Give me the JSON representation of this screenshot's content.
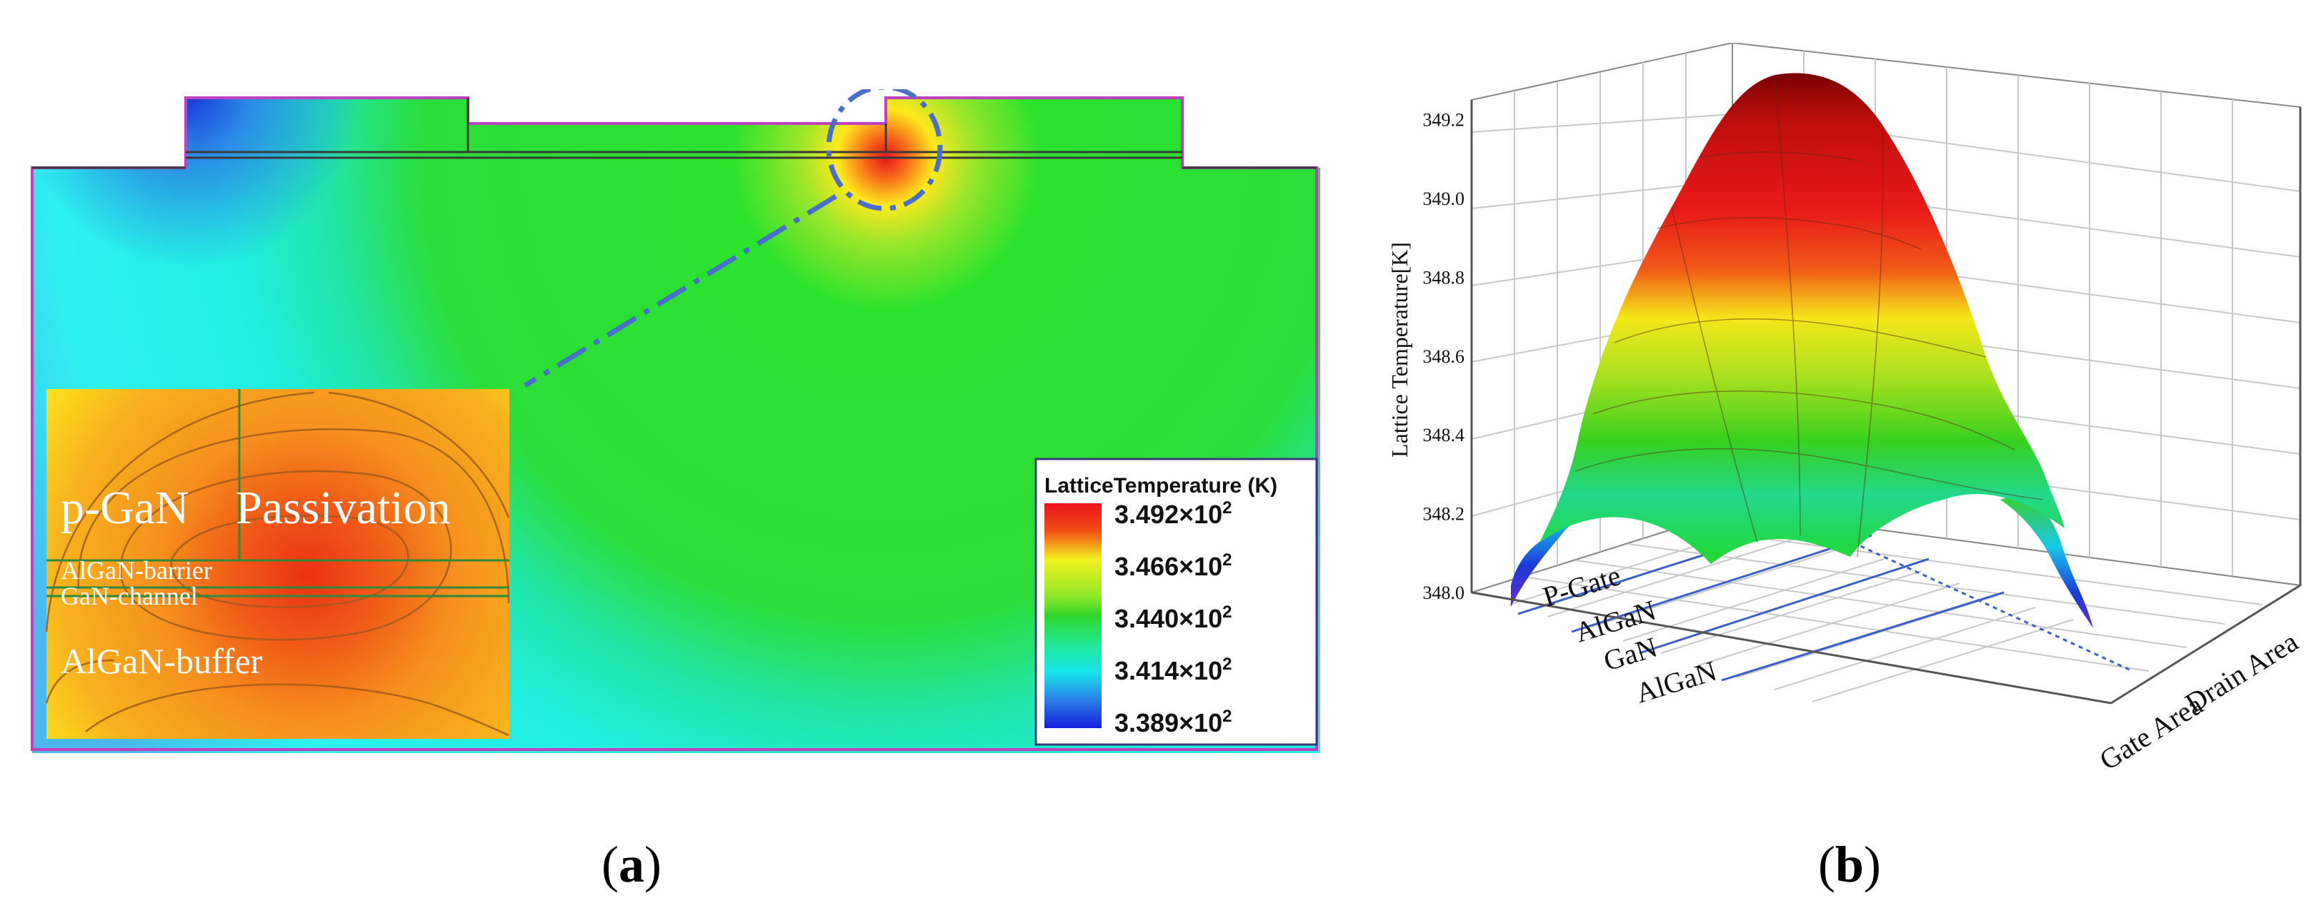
{
  "panel_a": {
    "label": "a",
    "legend": {
      "title": "LatticeTemperature (K)",
      "entries": [
        {
          "mantissa": "3.492",
          "exp": "2",
          "color": "#e8141c"
        },
        {
          "mantissa": "3.466",
          "exp": "2",
          "color": "#f2f21e"
        },
        {
          "mantissa": "3.440",
          "exp": "2",
          "color": "#2fd62b"
        },
        {
          "mantissa": "3.414",
          "exp": "2",
          "color": "#16e6ea"
        },
        {
          "mantissa": "3.389",
          "exp": "2",
          "color": "#1420dc"
        }
      ],
      "times": "×10"
    },
    "inset": {
      "pgan": "p-GaN",
      "passivation": "Passivation",
      "barrier": "AlGaN-barrier",
      "channel": "GaN-channel",
      "buffer": "AlGaN-buffer"
    },
    "colors": {
      "cyan": "#22f0f0",
      "green": "#2be22e",
      "hot": "#e8141c",
      "yellow": "#ffe800",
      "orange": "#f59120"
    }
  },
  "panel_b": {
    "label": "b",
    "z_axis": {
      "label": "Lattice Temperature[K]",
      "ticks": [
        "348.0",
        "348.2",
        "348.4",
        "348.6",
        "348.8",
        "349.0",
        "349.2"
      ],
      "range": [
        348.0,
        349.25
      ]
    },
    "layer_labels": [
      "P-Gate",
      "AlGaN",
      "GaN",
      "AlGaN"
    ],
    "x_axis_label": "Gate Area",
    "y_axis_label": "Drain Area",
    "colors": {
      "peak": "#7a0000",
      "red": "#e01818",
      "yellow": "#f5e81a",
      "green": "#38d020",
      "cyan": "#18c8e8",
      "blue": "#1a3ad8"
    }
  }
}
